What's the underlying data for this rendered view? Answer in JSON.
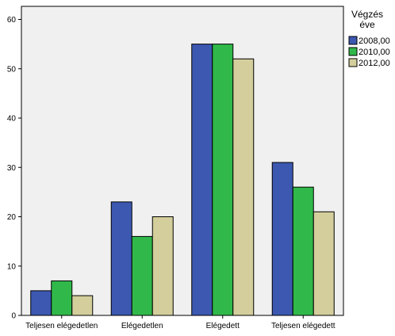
{
  "chart_data": {
    "type": "bar",
    "categories": [
      "Teljesen elégedetlen",
      "Elégedetlen",
      "Elégedett",
      "Teljesen elégedett"
    ],
    "series": [
      {
        "name": "2008,00",
        "values": [
          5,
          23,
          55,
          31
        ],
        "color": "#3c58b0"
      },
      {
        "name": "2010,00",
        "values": [
          7,
          16,
          55,
          26
        ],
        "color": "#31b84a"
      },
      {
        "name": "2012,00",
        "values": [
          4,
          20,
          52,
          21
        ],
        "color": "#d3ce9c"
      }
    ],
    "title": "",
    "xlabel": "",
    "ylabel": "",
    "ylim": [
      0,
      60
    ],
    "yticks": [
      0,
      10,
      20,
      30,
      40,
      50,
      60
    ],
    "grid": false,
    "plot_background": "#f0f0f0",
    "legend": {
      "title_lines": [
        "Végzés",
        "éve"
      ],
      "placement": "right"
    }
  }
}
